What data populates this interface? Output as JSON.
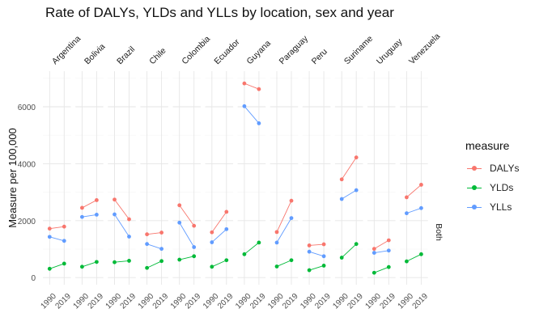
{
  "chart_data": {
    "type": "line",
    "title": "Rate of DALYs, YLDs and YLLs by location, sex and year",
    "ylabel": "Measure per 100,000",
    "xlabel": "",
    "ylim": [
      -250,
      7250
    ],
    "yticks": [
      0,
      2000,
      4000,
      6000
    ],
    "x": [
      "1990",
      "2019"
    ],
    "grid": true,
    "legend_position": "right",
    "legend_title": "measure",
    "facet_row_label": "Both",
    "facets": [
      "Argentina",
      "Bolivia",
      "Brazil",
      "Chile",
      "Colombia",
      "Ecuador",
      "Guyana",
      "Paraguay",
      "Peru",
      "Suriname",
      "Uruguay",
      "Venezuela"
    ],
    "series": [
      {
        "name": "DALYs",
        "color": "#F8766D",
        "values": [
          [
            1720,
            1790
          ],
          [
            2450,
            2720
          ],
          [
            2740,
            2050
          ],
          [
            1520,
            1580
          ],
          [
            2540,
            1820
          ],
          [
            1590,
            2310
          ],
          [
            6820,
            6620
          ],
          [
            1600,
            2700
          ],
          [
            1130,
            1170
          ],
          [
            3450,
            4220
          ],
          [
            1010,
            1310
          ],
          [
            2820,
            3260
          ]
        ]
      },
      {
        "name": "YLDs",
        "color": "#00BA38",
        "values": [
          [
            310,
            490
          ],
          [
            380,
            550
          ],
          [
            540,
            590
          ],
          [
            340,
            580
          ],
          [
            630,
            750
          ],
          [
            380,
            610
          ],
          [
            820,
            1230
          ],
          [
            390,
            610
          ],
          [
            260,
            420
          ],
          [
            700,
            1180
          ],
          [
            170,
            370
          ],
          [
            570,
            820
          ]
        ]
      },
      {
        "name": "YLLs",
        "color": "#619CFF",
        "values": [
          [
            1430,
            1290
          ],
          [
            2130,
            2210
          ],
          [
            2220,
            1440
          ],
          [
            1180,
            1010
          ],
          [
            1930,
            1070
          ],
          [
            1240,
            1700
          ],
          [
            6020,
            5420
          ],
          [
            1230,
            2090
          ],
          [
            910,
            750
          ],
          [
            2760,
            3070
          ],
          [
            870,
            950
          ],
          [
            2260,
            2440
          ]
        ]
      }
    ]
  }
}
